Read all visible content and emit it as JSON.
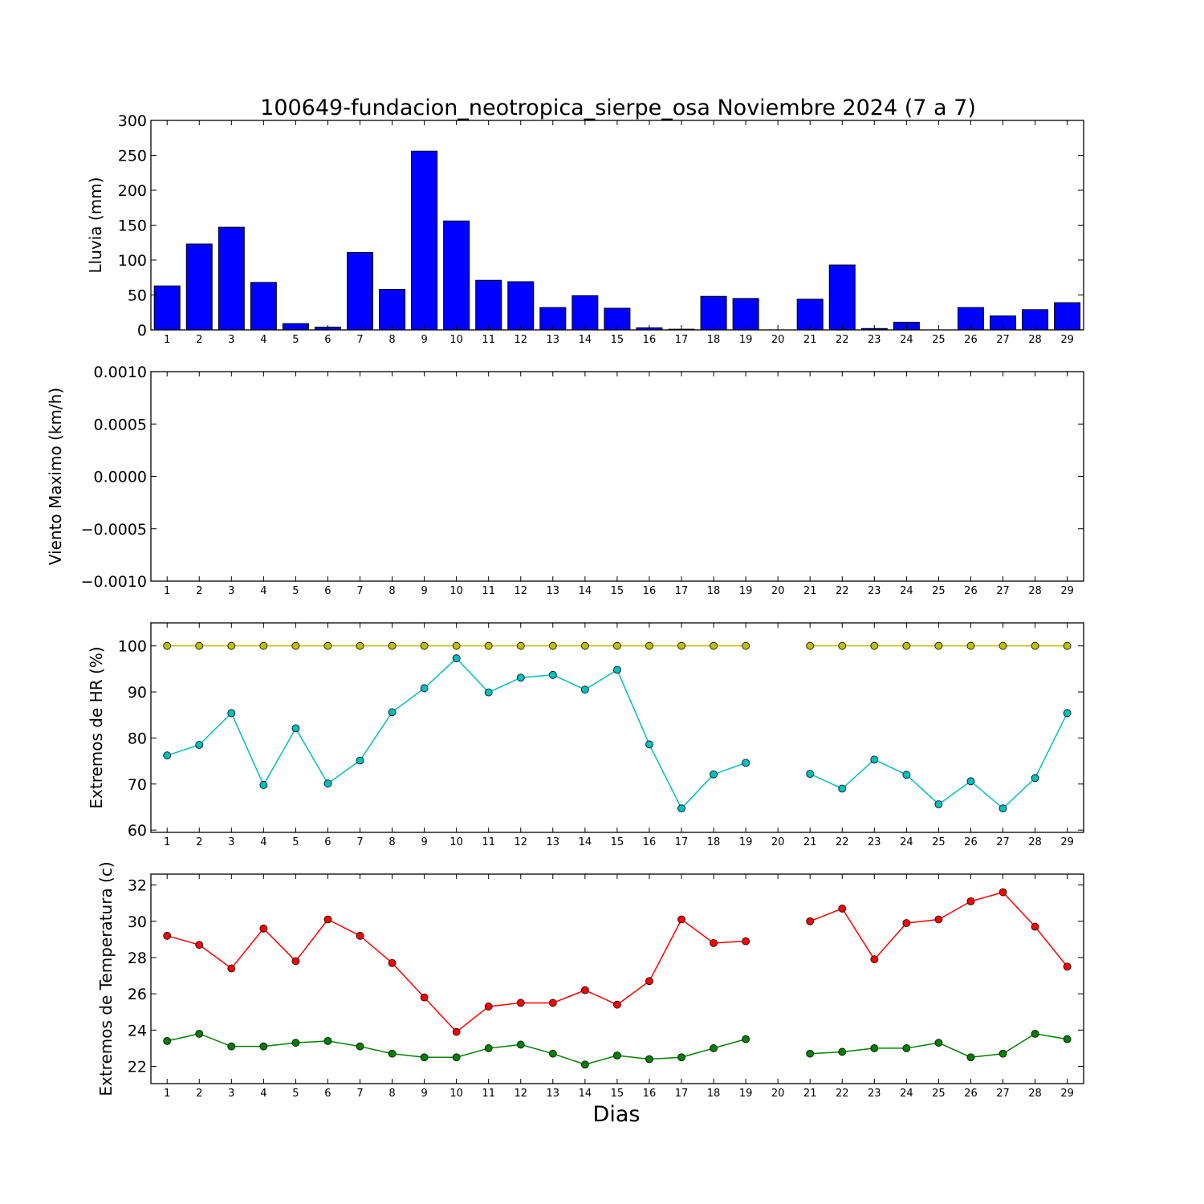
{
  "title": "100649-fundacion_neotropica_sierpe_osa Noviembre 2024  (7 a 7)",
  "xlabel": "Dias",
  "colors": {
    "bar": "#0000ff",
    "hr_max": "#bfbf00",
    "hr_min": "#00bfbf",
    "temp_max": "#ff0000",
    "temp_min": "#008000"
  },
  "chart_data": [
    {
      "type": "bar",
      "ylabel": "Lluvia (mm)",
      "ylim": [
        0,
        300
      ],
      "yticks": [
        0,
        50,
        100,
        150,
        200,
        250,
        300
      ],
      "categories": [
        1,
        2,
        3,
        4,
        5,
        6,
        7,
        8,
        9,
        10,
        11,
        12,
        13,
        14,
        15,
        16,
        17,
        18,
        19,
        20,
        21,
        22,
        23,
        24,
        25,
        26,
        27,
        28,
        29
      ],
      "values": [
        63,
        123,
        147,
        68,
        9,
        4,
        111,
        58,
        256,
        156,
        71,
        69,
        32,
        49,
        31,
        3,
        1,
        48,
        45,
        0,
        44,
        93,
        2,
        11,
        0,
        32,
        20,
        29,
        39
      ]
    },
    {
      "type": "line",
      "ylabel": "Viento Maximo (km/h)",
      "ylim": [
        -0.001,
        0.001
      ],
      "yticks": [
        -0.001,
        -0.0005,
        0.0,
        0.0005,
        0.001
      ],
      "ytick_labels": [
        "−0.0010",
        "−0.0005",
        "0.0000",
        "0.0005",
        "0.0010"
      ],
      "categories": [
        1,
        2,
        3,
        4,
        5,
        6,
        7,
        8,
        9,
        10,
        11,
        12,
        13,
        14,
        15,
        16,
        17,
        18,
        19,
        20,
        21,
        22,
        23,
        24,
        25,
        26,
        27,
        28,
        29
      ],
      "series": []
    },
    {
      "type": "line",
      "ylabel": "Extremos de HR (%)",
      "ylim": [
        59.5,
        105
      ],
      "yticks": [
        60,
        70,
        80,
        90,
        100
      ],
      "categories": [
        1,
        2,
        3,
        4,
        5,
        6,
        7,
        8,
        9,
        10,
        11,
        12,
        13,
        14,
        15,
        16,
        17,
        18,
        19,
        20,
        21,
        22,
        23,
        24,
        25,
        26,
        27,
        28,
        29
      ],
      "series": [
        {
          "key": "hr_max",
          "values": [
            100,
            100,
            100,
            100,
            100,
            100,
            100,
            100,
            100,
            100,
            100,
            100,
            100,
            100,
            100,
            100,
            100,
            100,
            100,
            null,
            100,
            100,
            100,
            100,
            100,
            100,
            100,
            100,
            100
          ]
        },
        {
          "key": "hr_min",
          "values": [
            76.2,
            78.5,
            85.4,
            69.8,
            82.1,
            70.1,
            75.1,
            85.6,
            90.8,
            97.3,
            89.9,
            93.1,
            93.7,
            90.5,
            94.8,
            78.6,
            64.7,
            72.1,
            74.6,
            null,
            72.2,
            69.0,
            75.3,
            72.0,
            65.6,
            70.6,
            64.7,
            71.3,
            85.4
          ]
        }
      ]
    },
    {
      "type": "line",
      "ylabel": "Extremos de Temperatura (c)",
      "ylim": [
        21.05,
        32.6
      ],
      "yticks": [
        22,
        24,
        26,
        28,
        30,
        32
      ],
      "categories": [
        1,
        2,
        3,
        4,
        5,
        6,
        7,
        8,
        9,
        10,
        11,
        12,
        13,
        14,
        15,
        16,
        17,
        18,
        19,
        20,
        21,
        22,
        23,
        24,
        25,
        26,
        27,
        28,
        29
      ],
      "series": [
        {
          "key": "temp_max",
          "values": [
            29.2,
            28.7,
            27.4,
            29.6,
            27.8,
            30.1,
            29.2,
            27.7,
            25.8,
            23.9,
            25.3,
            25.5,
            25.5,
            26.2,
            25.4,
            26.7,
            30.1,
            28.8,
            28.9,
            null,
            30.0,
            30.7,
            27.9,
            29.9,
            30.1,
            31.1,
            31.6,
            29.7,
            27.5
          ]
        },
        {
          "key": "temp_min",
          "values": [
            23.4,
            23.8,
            23.1,
            23.1,
            23.3,
            23.4,
            23.1,
            22.7,
            22.5,
            22.5,
            23.0,
            23.2,
            22.7,
            22.1,
            22.6,
            22.4,
            22.5,
            23.0,
            23.5,
            null,
            22.7,
            22.8,
            23.0,
            23.0,
            23.3,
            22.5,
            22.7,
            23.8,
            23.5
          ]
        }
      ]
    }
  ]
}
